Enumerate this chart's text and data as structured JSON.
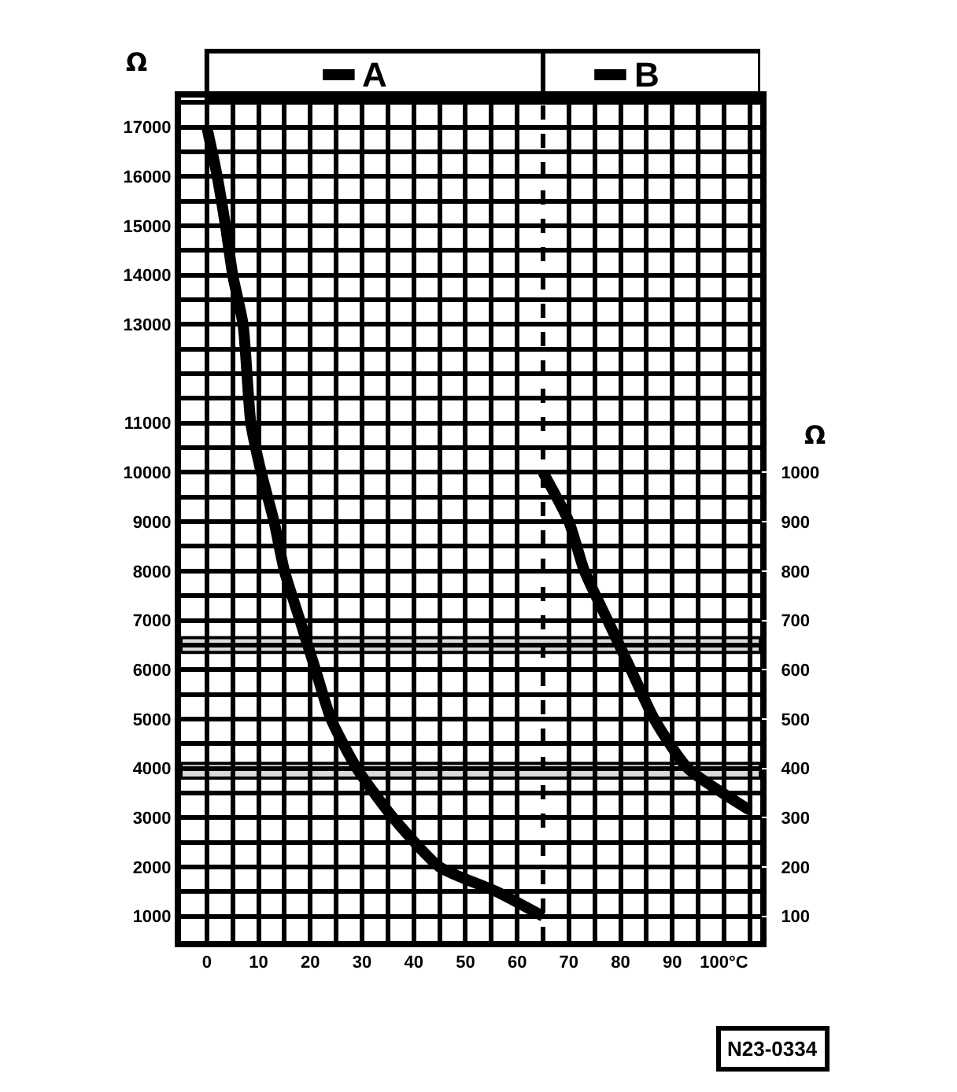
{
  "chart_data": {
    "type": "line",
    "ylabel": "Ω",
    "y2label": "Ω",
    "xlim": [
      -5,
      107
    ],
    "xticks": [
      0,
      10,
      20,
      30,
      40,
      50,
      60,
      70,
      80,
      90,
      {
        "value": 100,
        "label": "100°C"
      }
    ],
    "ylim": [
      500,
      17600
    ],
    "yticks": [
      1000,
      2000,
      3000,
      4000,
      5000,
      6000,
      7000,
      8000,
      9000,
      10000,
      11000,
      13000,
      14000,
      15000,
      16000,
      17000
    ],
    "y2lim": [
      50,
      1760
    ],
    "y2ticks": [
      100,
      200,
      300,
      400,
      500,
      600,
      700,
      800,
      900,
      1000
    ],
    "series": [
      {
        "name": "A",
        "color": "#000000",
        "x": [
          0,
          2,
          3.6,
          5,
          7,
          8.5,
          10.5,
          13,
          15,
          18,
          21,
          24,
          29,
          36,
          45,
          56,
          65
        ],
        "values": [
          17000,
          16000,
          15000,
          14000,
          13000,
          11000,
          10000,
          9000,
          8000,
          7000,
          6000,
          5000,
          4000,
          3000,
          2000,
          1500,
          1000
        ]
      },
      {
        "name": "B",
        "color": "#000000",
        "axis": "y2",
        "x": [
          65,
          70,
          73,
          77.5,
          82,
          86.5,
          93,
          105
        ],
        "values": [
          1000,
          900,
          800,
          700,
          600,
          500,
          400,
          315
        ]
      }
    ],
    "ref_lines": [
      {
        "axis": "x",
        "value": 65,
        "line_style": "dashed",
        "color": "#000000"
      }
    ],
    "bands": [
      {
        "axis": "y",
        "from": 3800,
        "to": 4100,
        "color": "#000000"
      },
      {
        "axis": "y2",
        "from": 635,
        "to": 665,
        "color": "#000000"
      }
    ],
    "annotations": [
      "N23-0334"
    ],
    "grid": true,
    "legend": "top",
    "marker": "none",
    "line_style": "solid"
  }
}
